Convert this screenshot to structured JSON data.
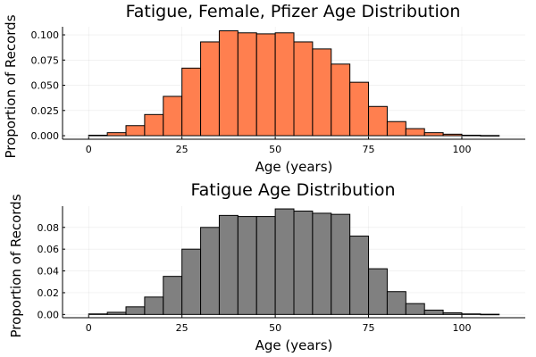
{
  "chart_data": [
    {
      "type": "bar",
      "title": "Fatigue, Female, Pfizer Age Distribution",
      "xlabel": "Age (years)",
      "ylabel": "Proportion of Records",
      "bar_color": "#ff7f4f",
      "bin_width": 5,
      "bin_starts": [
        0,
        5,
        10,
        15,
        20,
        25,
        30,
        35,
        40,
        45,
        50,
        55,
        60,
        65,
        70,
        75,
        80,
        85,
        90,
        95,
        100,
        105
      ],
      "values": [
        0.0005,
        0.003,
        0.01,
        0.021,
        0.039,
        0.067,
        0.093,
        0.104,
        0.102,
        0.101,
        0.102,
        0.093,
        0.086,
        0.071,
        0.053,
        0.029,
        0.014,
        0.007,
        0.003,
        0.0015,
        0.0005,
        0.0002
      ],
      "xlim": [
        -7,
        117
      ],
      "ylim": [
        -0.0035,
        0.108
      ],
      "xticks": [
        0,
        25,
        50,
        75,
        100
      ],
      "yticks": [
        0.0,
        0.025,
        0.05,
        0.075,
        0.1
      ],
      "ytick_labels": [
        "0.000",
        "0.025",
        "0.050",
        "0.075",
        "0.100"
      ],
      "grid": true
    },
    {
      "type": "bar",
      "title": "Fatigue Age Distribution",
      "xlabel": "Age (years)",
      "ylabel": "Proportion of Records",
      "bar_color": "#808080",
      "bin_width": 5,
      "bin_starts": [
        0,
        5,
        10,
        15,
        20,
        25,
        30,
        35,
        40,
        45,
        50,
        55,
        60,
        65,
        70,
        75,
        80,
        85,
        90,
        95,
        100,
        105
      ],
      "values": [
        0.0005,
        0.002,
        0.007,
        0.016,
        0.035,
        0.06,
        0.08,
        0.091,
        0.09,
        0.09,
        0.097,
        0.095,
        0.093,
        0.092,
        0.072,
        0.042,
        0.021,
        0.01,
        0.004,
        0.0015,
        0.0005,
        0.0002
      ],
      "xlim": [
        -7,
        117
      ],
      "ylim": [
        -0.003,
        0.0995
      ],
      "xticks": [
        0,
        25,
        50,
        75,
        100
      ],
      "yticks": [
        0.0,
        0.02,
        0.04,
        0.06,
        0.08
      ],
      "ytick_labels": [
        "0.00",
        "0.02",
        "0.04",
        "0.06",
        "0.08"
      ],
      "grid": true
    }
  ]
}
